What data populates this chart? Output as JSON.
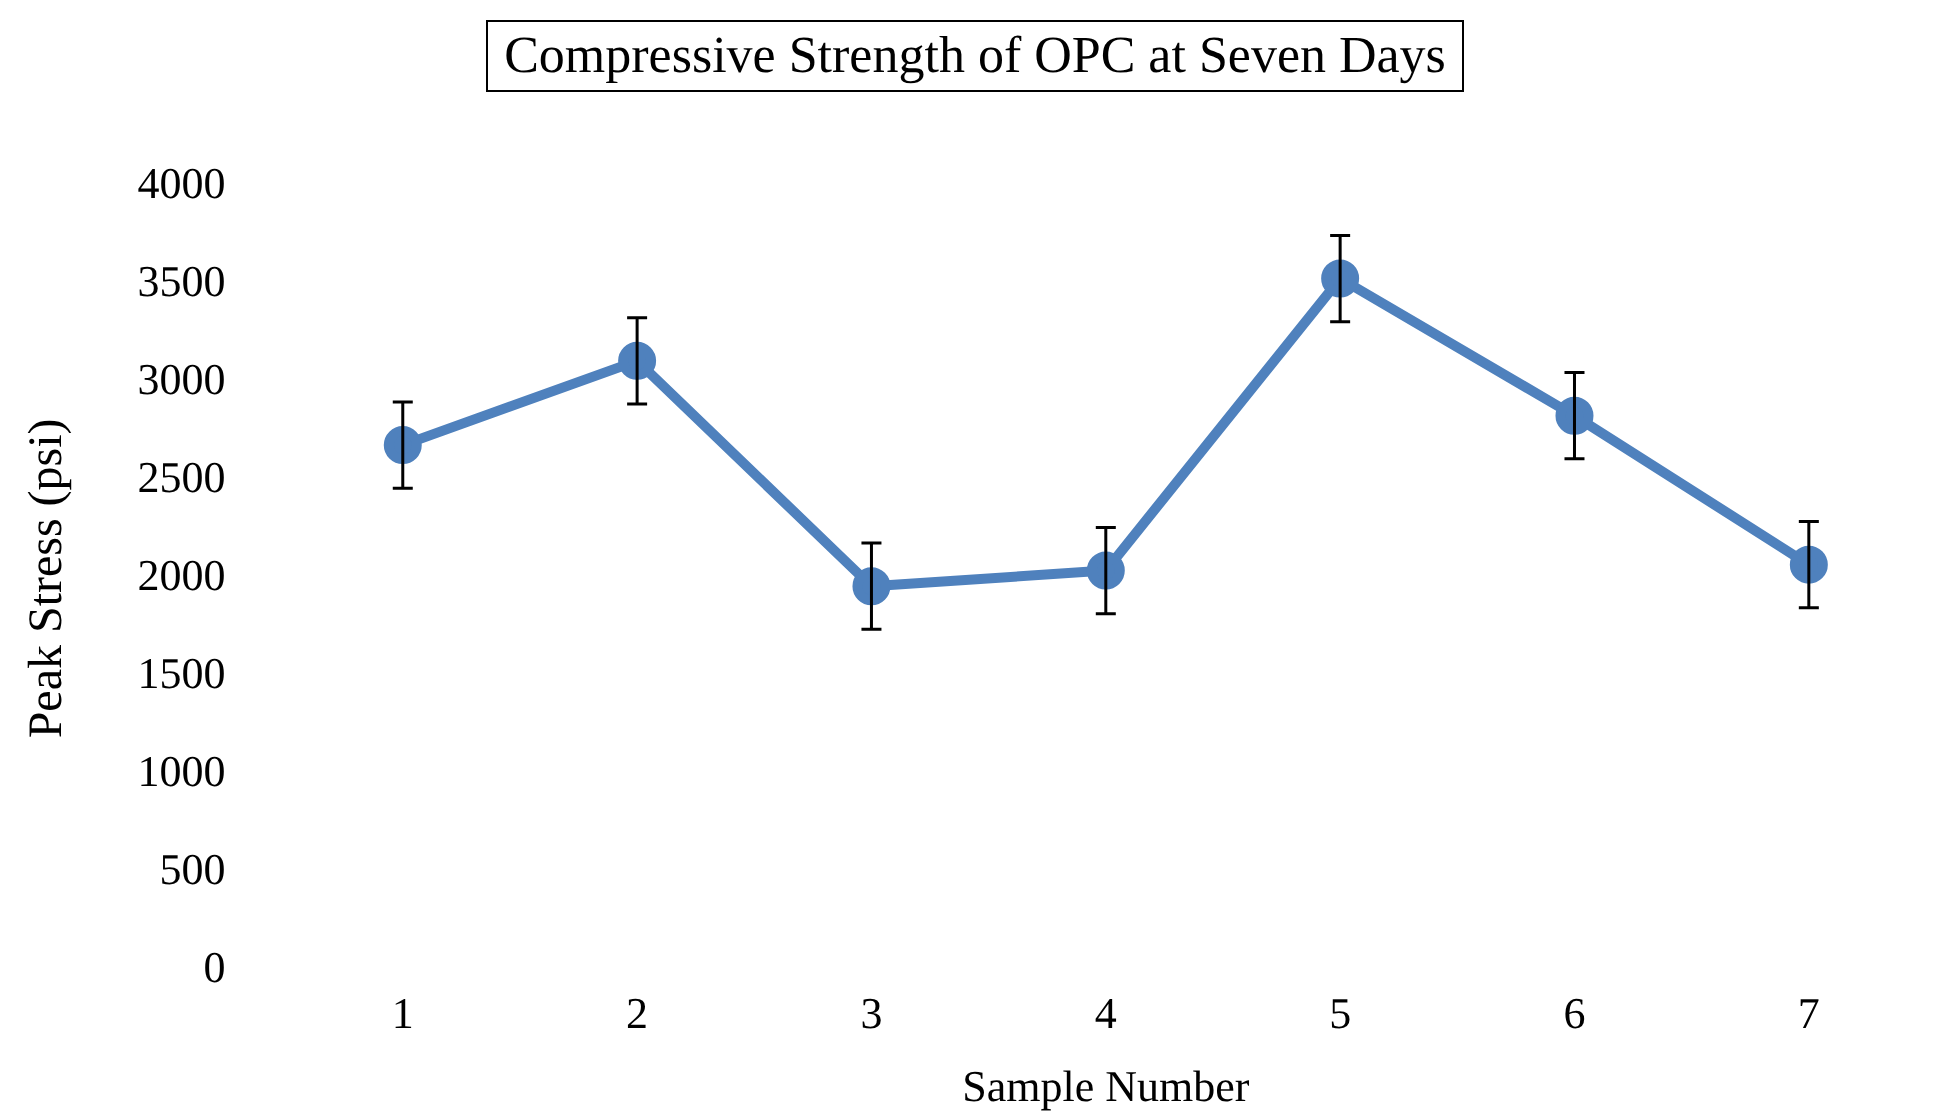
{
  "chart_data": {
    "type": "line",
    "title": "Compressive Strength of OPC at Seven Days",
    "xlabel": "Sample Number",
    "ylabel": "Peak Stress (psi)",
    "categories": [
      "1",
      "2",
      "3",
      "4",
      "5",
      "6",
      "7"
    ],
    "series": [
      {
        "color": "#4f81bd",
        "values": [
          2680,
          3110,
          1960,
          2040,
          3530,
          2830,
          2070
        ],
        "errors": [
          220,
          220,
          220,
          220,
          220,
          220,
          220
        ]
      }
    ],
    "ylim": [
      0,
      4000
    ],
    "yticks": [
      0,
      500,
      1000,
      1500,
      2000,
      2500,
      3000,
      3500,
      4000
    ],
    "grid": false,
    "legend": false,
    "marker": "circle",
    "line_style": "solid"
  }
}
